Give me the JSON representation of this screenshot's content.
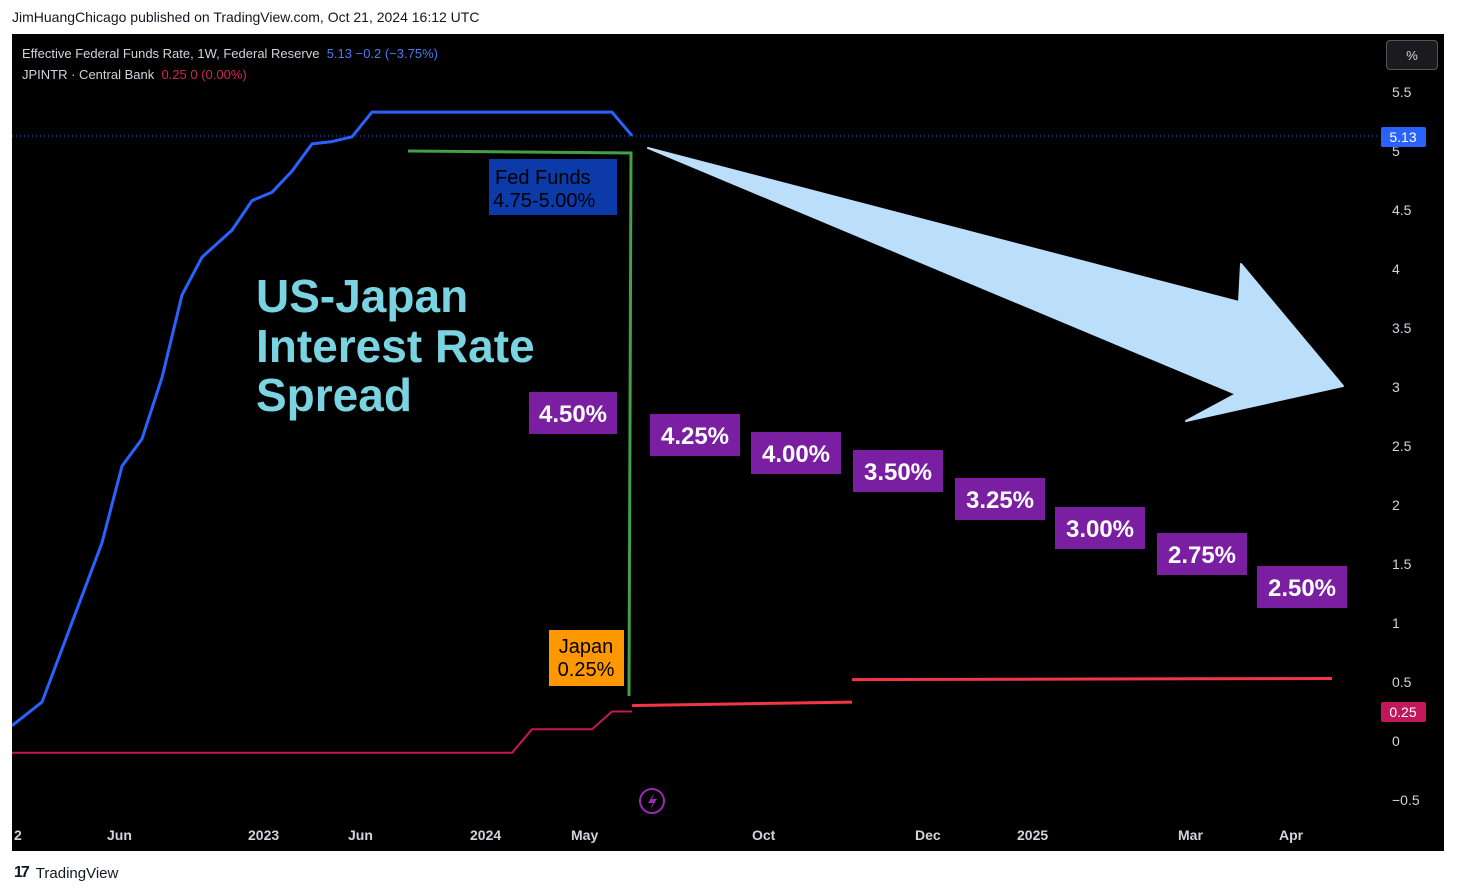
{
  "header": {
    "attribution": "JimHuangChicago published on TradingView.com, Oct 21, 2024 16:12 UTC"
  },
  "legend": {
    "fed": {
      "name": "Effective Federal Funds Rate, 1W, Federal Reserve",
      "values": "5.13  −0.2 (−3.75%)"
    },
    "japan": {
      "name": "JPINTR · Central Bank",
      "values": "0.25  0 (0.00%)"
    }
  },
  "scale_button": "%",
  "footer": {
    "logo": "17",
    "brand": "TradingView"
  },
  "colors": {
    "fed": "#2962ff",
    "japan": "#c2185b",
    "projection": "#f23645",
    "green": "#43a047",
    "purple": "#7b1fa2",
    "arrow": "#bbdefb",
    "title": "#7ad3e0"
  },
  "chart_data": {
    "type": "line",
    "x_tick_labels": [
      "2",
      "Jun",
      "2023",
      "Jun",
      "2024",
      "May",
      "Oct",
      "Dec",
      "2025",
      "Mar",
      "Apr"
    ],
    "y_tick_labels": [
      "5.5",
      "5",
      "4.5",
      "4",
      "3.5",
      "3",
      "2.5",
      "2",
      "1.5",
      "1",
      "0.5",
      "0",
      "−0.5"
    ],
    "ylim": [
      -0.5,
      5.5
    ],
    "price_labels": {
      "fed": "5.13",
      "japan": "0.25"
    },
    "series": [
      {
        "name": "Effective Federal Funds Rate",
        "points": [
          [
            0.0,
            0.13
          ],
          [
            0.03,
            0.33
          ],
          [
            0.09,
            1.68
          ],
          [
            0.11,
            2.33
          ],
          [
            0.13,
            2.56
          ],
          [
            0.15,
            3.08
          ],
          [
            0.17,
            3.78
          ],
          [
            0.19,
            4.1
          ],
          [
            0.22,
            4.33
          ],
          [
            0.24,
            4.58
          ],
          [
            0.26,
            4.65
          ],
          [
            0.28,
            4.83
          ],
          [
            0.3,
            5.06
          ],
          [
            0.32,
            5.08
          ],
          [
            0.34,
            5.12
          ],
          [
            0.36,
            5.33
          ],
          [
            0.6,
            5.33
          ],
          [
            0.62,
            5.13
          ]
        ]
      },
      {
        "name": "JPINTR",
        "points": [
          [
            0.0,
            -0.1
          ],
          [
            0.5,
            -0.1
          ],
          [
            0.52,
            0.1
          ],
          [
            0.58,
            0.1
          ],
          [
            0.6,
            0.25
          ],
          [
            0.62,
            0.25
          ]
        ]
      },
      {
        "name": "Projection 1",
        "points": [
          [
            0.62,
            0.3
          ],
          [
            0.84,
            0.33
          ]
        ]
      },
      {
        "name": "Projection 2",
        "points": [
          [
            0.84,
            0.52
          ],
          [
            1.32,
            0.53
          ]
        ]
      }
    ],
    "annotations": {
      "title": [
        "US-Japan",
        "Interest Rate",
        "Spread"
      ],
      "fed_box": [
        "Fed Funds",
        "4.75-5.00%"
      ],
      "japan_box": [
        "Japan",
        "0.25%"
      ],
      "spread_main": "4.50%",
      "spreads": [
        "4.25%",
        "4.00%",
        "3.50%",
        "3.25%",
        "3.00%",
        "2.75%",
        "2.50%"
      ]
    }
  }
}
